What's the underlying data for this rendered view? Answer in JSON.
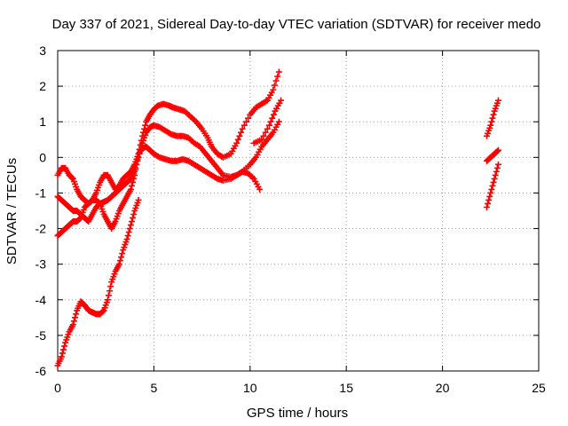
{
  "chart_data": {
    "type": "scatter",
    "title": "Day 337 of 2021, Sidereal Day-to-day VTEC variation (SDTVAR) for receiver medo",
    "xlabel": "GPS time / hours",
    "ylabel": "SDTVAR / TECUs",
    "xlim": [
      0,
      25
    ],
    "ylim": [
      -6,
      3
    ],
    "xticks": [
      "0",
      "5",
      "10",
      "15",
      "20",
      "25"
    ],
    "yticks": [
      "-6",
      "-5",
      "-4",
      "-3",
      "-2",
      "-1",
      "0",
      "1",
      "2",
      "3"
    ],
    "grid": true,
    "legend": "none",
    "marker": "plus",
    "color": "#ff0000",
    "series": [
      {
        "x": [
          0,
          0.2,
          0.4,
          0.6,
          0.8,
          1.0,
          1.2,
          1.4,
          1.6,
          1.8,
          2.0,
          2.2,
          2.4,
          2.6,
          2.8,
          3.0,
          3.2,
          3.4,
          3.6,
          3.8,
          4.0,
          4.2
        ],
        "y": [
          -5.85,
          -5.6,
          -5.2,
          -4.9,
          -4.7,
          -4.3,
          -4.05,
          -4.15,
          -4.3,
          -4.35,
          -4.4,
          -4.4,
          -4.3,
          -4.0,
          -3.5,
          -3.2,
          -3.0,
          -2.6,
          -2.3,
          -1.9,
          -1.5,
          -1.2
        ]
      },
      {
        "x": [
          0,
          0.2,
          0.4,
          0.6,
          0.8,
          1.0,
          1.2,
          1.4,
          1.6,
          1.8,
          2.0,
          2.2,
          2.4,
          2.6,
          2.8,
          3.0,
          3.2,
          3.4,
          3.6,
          3.8,
          4.0,
          4.2,
          4.4,
          4.6,
          4.8,
          5.0,
          5.2,
          5.5,
          5.8,
          6.0,
          6.3,
          6.6,
          6.9,
          7.2,
          7.5,
          7.8,
          8.0,
          8.3,
          8.6,
          9.0,
          9.3,
          9.6,
          10.0,
          10.3,
          10.6,
          10.9,
          11.2,
          11.5
        ],
        "y": [
          -0.5,
          -0.3,
          -0.3,
          -0.5,
          -0.6,
          -0.9,
          -1.1,
          -1.2,
          -1.3,
          -1.2,
          -1.0,
          -0.7,
          -0.5,
          -0.5,
          -0.7,
          -0.9,
          -0.8,
          -0.6,
          -0.5,
          -0.4,
          -0.2,
          0.1,
          0.6,
          1.0,
          1.2,
          1.35,
          1.45,
          1.5,
          1.45,
          1.4,
          1.35,
          1.3,
          1.15,
          1.0,
          0.8,
          0.55,
          0.3,
          0.1,
          0.0,
          0.1,
          0.4,
          0.8,
          1.2,
          1.4,
          1.5,
          1.6,
          1.9,
          2.4
        ]
      },
      {
        "x": [
          0,
          0.2,
          0.4,
          0.6,
          0.8,
          1.0,
          1.2,
          1.4,
          1.6,
          1.8,
          2.0,
          2.2,
          2.4,
          2.6,
          2.8,
          3.0,
          3.2,
          3.4,
          3.6,
          3.8,
          4.0,
          4.2,
          4.4,
          4.6,
          4.8,
          5.0,
          5.3,
          5.6,
          5.9,
          6.2,
          6.5,
          6.8,
          7.1,
          7.4,
          7.7,
          8.0,
          8.3,
          8.6,
          9.0,
          9.3,
          9.6,
          10.0,
          10.3,
          10.6,
          10.9,
          11.2,
          11.5
        ],
        "y": [
          -1.1,
          -1.2,
          -1.3,
          -1.4,
          -1.5,
          -1.5,
          -1.6,
          -1.7,
          -1.8,
          -1.6,
          -1.4,
          -1.3,
          -1.25,
          -1.2,
          -1.1,
          -1.0,
          -0.9,
          -0.8,
          -0.7,
          -0.6,
          -0.4,
          0.0,
          0.4,
          0.7,
          0.85,
          0.9,
          0.85,
          0.75,
          0.65,
          0.6,
          0.6,
          0.55,
          0.4,
          0.3,
          0.1,
          -0.1,
          -0.3,
          -0.5,
          -0.55,
          -0.5,
          -0.4,
          -0.2,
          0.0,
          0.3,
          0.5,
          0.7,
          1.0
        ]
      },
      {
        "x": [
          0,
          0.2,
          0.4,
          0.6,
          0.8,
          1.0,
          1.2,
          1.4,
          1.6,
          1.8,
          2.0,
          2.2,
          2.4,
          2.6,
          2.8,
          3.0,
          3.2,
          3.4,
          3.6,
          3.8,
          4.0,
          4.2,
          4.4,
          4.6,
          4.8,
          5.0,
          5.3,
          5.6,
          5.9,
          6.2,
          6.5,
          6.8,
          7.1,
          7.4,
          7.7,
          8.0,
          8.3,
          8.6,
          9.0,
          9.3,
          9.6,
          9.9,
          10.2,
          10.5
        ],
        "y": [
          -2.2,
          -2.1,
          -2.0,
          -1.9,
          -1.8,
          -1.8,
          -1.7,
          -1.4,
          -1.3,
          -1.2,
          -1.2,
          -1.3,
          -1.6,
          -1.8,
          -2.0,
          -1.8,
          -1.5,
          -1.3,
          -1.1,
          -0.9,
          -0.5,
          0.1,
          0.25,
          0.3,
          0.2,
          0.1,
          0.0,
          -0.05,
          -0.1,
          -0.1,
          -0.05,
          -0.1,
          -0.2,
          -0.3,
          -0.4,
          -0.5,
          -0.6,
          -0.65,
          -0.6,
          -0.5,
          -0.4,
          -0.45,
          -0.6,
          -0.9
        ]
      },
      {
        "x": [
          10.2,
          10.6,
          11.0,
          11.3,
          11.6
        ],
        "y": [
          0.4,
          0.5,
          0.9,
          1.3,
          1.6
        ]
      },
      {
        "x": [
          22.3,
          22.5,
          22.7,
          22.9
        ],
        "y": [
          0.6,
          0.9,
          1.3,
          1.6
        ]
      },
      {
        "x": [
          22.3,
          22.5,
          22.7,
          22.9
        ],
        "y": [
          -0.1,
          0.0,
          0.1,
          0.2
        ]
      },
      {
        "x": [
          22.3,
          22.5,
          22.7,
          22.9
        ],
        "y": [
          -1.4,
          -1.0,
          -0.6,
          -0.2
        ]
      }
    ]
  }
}
